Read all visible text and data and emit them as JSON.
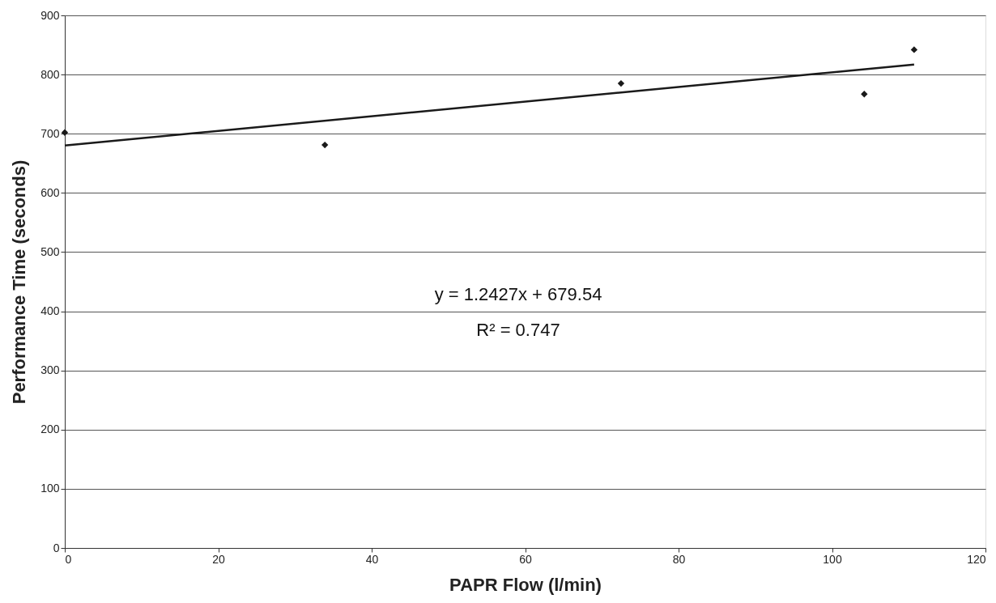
{
  "chart_data": {
    "type": "scatter",
    "xlabel": "PAPR Flow (l/min)",
    "ylabel": "Performance Time (seconds)",
    "xlim": [
      0,
      120
    ],
    "xticks": [
      0,
      20,
      40,
      60,
      80,
      100,
      120
    ],
    "ylim": [
      0,
      900
    ],
    "yticks": [
      0,
      100,
      200,
      300,
      400,
      500,
      600,
      700,
      800,
      900
    ],
    "grid": "y",
    "series": [
      {
        "type": "scatter",
        "color": "#1a1a1a",
        "marker": "diamond",
        "x": [
          0,
          33.9,
          72.5,
          104.2,
          110.7
        ],
        "values": [
          702,
          681,
          785,
          767,
          842
        ]
      },
      {
        "type": "line",
        "color": "#1a1a1a",
        "x": [
          0,
          110.7
        ],
        "values": [
          680,
          817
        ],
        "line_style": "solid",
        "marker": "none"
      }
    ],
    "annotations": [
      "y = 1.2427x + 679.54",
      "R² = 0.747"
    ]
  }
}
